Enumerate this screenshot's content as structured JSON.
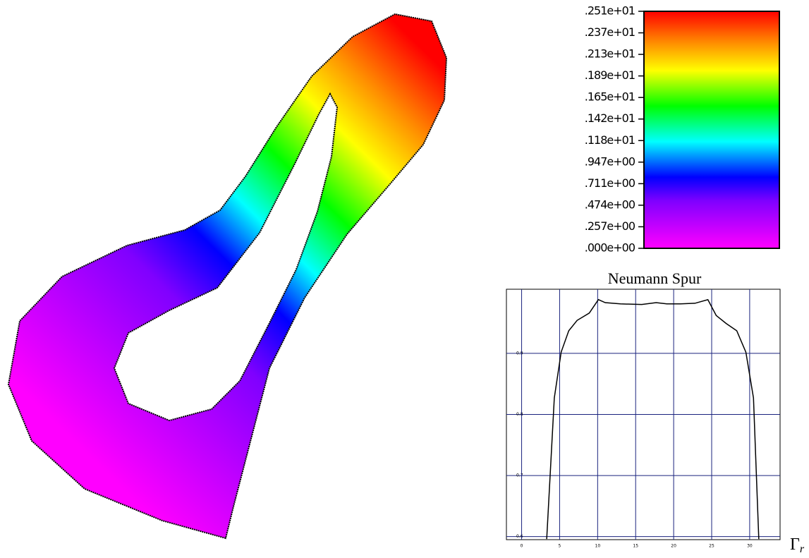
{
  "colorbar": {
    "labels": [
      ".251e+01",
      ".237e+01",
      ".213e+01",
      ".189e+01",
      ".165e+01",
      ".142e+01",
      ".118e+01",
      ".947e+00",
      ".711e+00",
      ".474e+00",
      ".257e+00",
      ".000e+00"
    ]
  },
  "chart_data": {
    "type": "line",
    "title": "Neumann Spur",
    "x_label": "Γ",
    "x_label_subscript": "r",
    "x": [
      3.3,
      4.3,
      5.2,
      6.2,
      7.3,
      8.9,
      10.1,
      11.0,
      13.0,
      15.8,
      17.7,
      19.1,
      20.9,
      22.8,
      24.5,
      25.6,
      26.9,
      28.3,
      29.5,
      30.5,
      31.2
    ],
    "values": [
      0.596,
      0.827,
      0.902,
      0.937,
      0.954,
      0.966,
      0.988,
      0.983,
      0.981,
      0.98,
      0.983,
      0.981,
      0.981,
      0.982,
      0.988,
      0.962,
      0.949,
      0.937,
      0.902,
      0.827,
      0.596
    ],
    "color": "#000000",
    "grid": true,
    "grid_color": "#1a237e",
    "xlim": [
      -2,
      34
    ],
    "ylim": [
      0.595,
      1.005
    ],
    "xticks": [
      0,
      5,
      10,
      15,
      20,
      25,
      30
    ],
    "yticks": [
      0.6,
      0.7,
      0.8,
      0.9
    ]
  }
}
